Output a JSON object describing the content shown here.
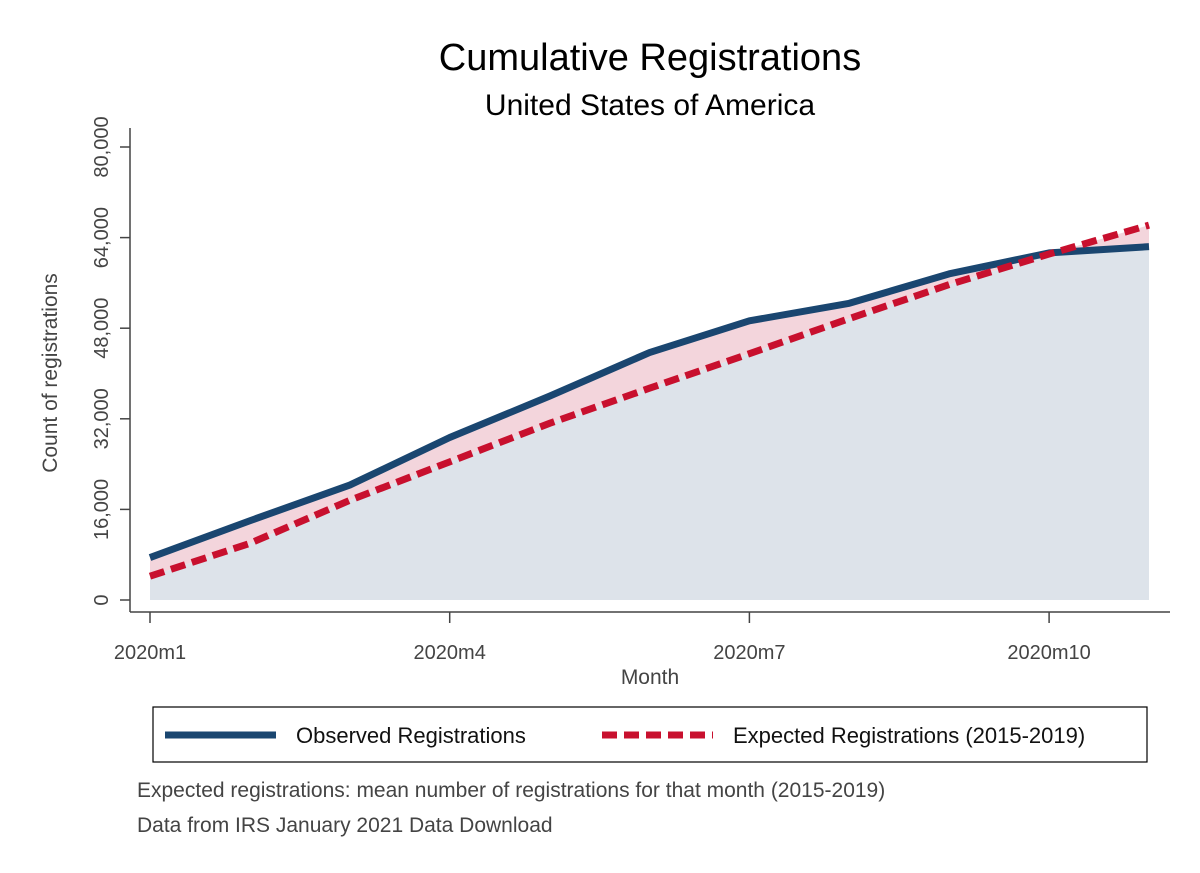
{
  "chart_data": {
    "type": "area",
    "title": "Cumulative Registrations",
    "subtitle": "United States of America",
    "xlabel": "Month",
    "ylabel": "Count of registrations",
    "x_index": [
      1,
      2,
      3,
      4,
      5,
      6,
      7,
      8,
      9,
      10,
      11
    ],
    "x_ticks": [
      {
        "index": 1,
        "label": "2020m1"
      },
      {
        "index": 4,
        "label": "2020m4"
      },
      {
        "index": 7,
        "label": "2020m7"
      },
      {
        "index": 10,
        "label": "2020m10"
      }
    ],
    "xlim": [
      1,
      11
    ],
    "y_ticks": [
      {
        "value": 0,
        "label": "0"
      },
      {
        "value": 16000,
        "label": "16,000"
      },
      {
        "value": 32000,
        "label": "32,000"
      },
      {
        "value": 48000,
        "label": "48,000"
      },
      {
        "value": 64000,
        "label": "64,000"
      },
      {
        "value": 80000,
        "label": "80,000"
      }
    ],
    "ylim": [
      0,
      80000
    ],
    "grid": false,
    "legend_position": "bottom",
    "series": [
      {
        "name": "Observed Registrations",
        "style": "solid",
        "color": "#1a4670",
        "values": [
          7500,
          14000,
          20300,
          28700,
          36000,
          43700,
          49300,
          52400,
          57600,
          61300,
          62400
        ]
      },
      {
        "name": "Expected Registrations (2015-2019)",
        "style": "dashed",
        "color": "#c8102e",
        "values": [
          4200,
          10000,
          17600,
          24400,
          31200,
          37400,
          43500,
          49700,
          55700,
          61100,
          66200
        ]
      }
    ],
    "fills": {
      "below_color": "#dde3ea",
      "gap_color": "#f3d5dc"
    }
  },
  "notes": [
    "Expected registrations: mean number of registrations for that month (2015-2019)",
    "Data from IRS January 2021 Data Download"
  ]
}
